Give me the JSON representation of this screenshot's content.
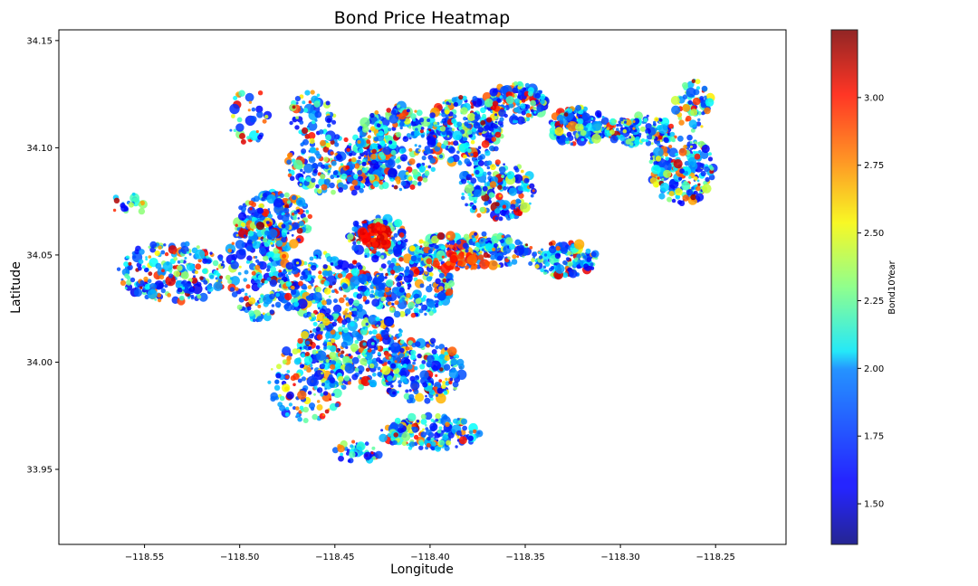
{
  "chart_data": {
    "type": "scatter",
    "title": "Bond Price Heatmap",
    "xlabel": "Longitude",
    "ylabel": "Latitude",
    "xlim": [
      -118.595,
      -118.213
    ],
    "ylim": [
      33.915,
      34.155
    ],
    "xticks": [
      -118.55,
      -118.5,
      -118.45,
      -118.4,
      -118.35,
      -118.3,
      -118.25
    ],
    "xtick_labels": [
      "−118.55",
      "−118.50",
      "−118.45",
      "−118.40",
      "−118.35",
      "−118.30",
      "−118.25"
    ],
    "yticks": [
      33.95,
      34.0,
      34.05,
      34.1,
      34.15
    ],
    "ytick_labels": [
      "33.95",
      "34.00",
      "34.05",
      "34.10",
      "34.15"
    ],
    "grid": false,
    "colormap": "jet",
    "colorbar": {
      "label": "Bond10Year",
      "min": 1.35,
      "max": 3.25,
      "ticks": [
        1.5,
        1.75,
        2.0,
        2.25,
        2.5,
        2.75,
        3.0
      ],
      "tick_labels": [
        "1.50",
        "1.75",
        "2.00",
        "2.25",
        "2.50",
        "2.75",
        "3.00"
      ]
    },
    "point_regions": [
      {
        "lon": -118.535,
        "lat": 34.042,
        "rlon": 0.03,
        "rlat": 0.014,
        "n": 240
      },
      {
        "lon": -118.49,
        "lat": 34.045,
        "rlon": 0.016,
        "rlat": 0.026,
        "n": 200
      },
      {
        "lon": -118.482,
        "lat": 34.066,
        "rlon": 0.02,
        "rlat": 0.013,
        "n": 200
      },
      {
        "lon": -118.558,
        "lat": 34.074,
        "rlon": 0.01,
        "rlat": 0.005,
        "n": 20
      },
      {
        "lon": -118.495,
        "lat": 34.115,
        "rlon": 0.012,
        "rlat": 0.014,
        "n": 35
      },
      {
        "lon": -118.462,
        "lat": 34.115,
        "rlon": 0.012,
        "rlat": 0.011,
        "n": 60
      },
      {
        "lon": -118.448,
        "lat": 34.092,
        "rlon": 0.028,
        "rlat": 0.014,
        "n": 260
      },
      {
        "lon": -118.417,
        "lat": 34.1,
        "rlon": 0.022,
        "rlat": 0.02,
        "n": 280
      },
      {
        "lon": -118.382,
        "lat": 34.108,
        "rlon": 0.02,
        "rlat": 0.016,
        "n": 240
      },
      {
        "lon": -118.355,
        "lat": 34.121,
        "rlon": 0.016,
        "rlat": 0.009,
        "n": 160
      },
      {
        "lon": -118.322,
        "lat": 34.11,
        "rlon": 0.015,
        "rlat": 0.009,
        "n": 150
      },
      {
        "lon": -118.29,
        "lat": 34.108,
        "rlon": 0.018,
        "rlat": 0.007,
        "n": 150
      },
      {
        "lon": -118.268,
        "lat": 34.09,
        "rlon": 0.017,
        "rlat": 0.016,
        "n": 200
      },
      {
        "lon": -118.262,
        "lat": 34.12,
        "rlon": 0.01,
        "rlat": 0.012,
        "n": 70
      },
      {
        "lon": -118.365,
        "lat": 34.08,
        "rlon": 0.02,
        "rlat": 0.014,
        "n": 200
      },
      {
        "lon": -118.428,
        "lat": 34.058,
        "rlon": 0.016,
        "rlat": 0.01,
        "n": 140
      },
      {
        "lon": -118.378,
        "lat": 34.052,
        "rlon": 0.032,
        "rlat": 0.008,
        "n": 260
      },
      {
        "lon": -118.33,
        "lat": 34.048,
        "rlon": 0.018,
        "rlat": 0.008,
        "n": 150
      },
      {
        "lon": -118.455,
        "lat": 34.035,
        "rlon": 0.025,
        "rlat": 0.016,
        "n": 260
      },
      {
        "lon": -118.41,
        "lat": 34.035,
        "rlon": 0.022,
        "rlat": 0.014,
        "n": 240
      },
      {
        "lon": -118.44,
        "lat": 34.005,
        "rlon": 0.03,
        "rlat": 0.018,
        "n": 320
      },
      {
        "lon": -118.465,
        "lat": 33.99,
        "rlon": 0.02,
        "rlat": 0.018,
        "n": 140
      },
      {
        "lon": -118.405,
        "lat": 33.996,
        "rlon": 0.022,
        "rlat": 0.015,
        "n": 200
      },
      {
        "lon": -118.4,
        "lat": 33.967,
        "rlon": 0.026,
        "rlat": 0.008,
        "n": 170
      },
      {
        "lon": -118.438,
        "lat": 33.958,
        "rlon": 0.012,
        "rlat": 0.005,
        "n": 40
      }
    ],
    "hotspots": [
      {
        "lon": -118.428,
        "lat": 34.059,
        "rlon": 0.008,
        "rlat": 0.006,
        "value": 3.0,
        "n": 70
      },
      {
        "lon": -118.385,
        "lat": 34.047,
        "rlon": 0.016,
        "rlat": 0.004,
        "value": 2.9,
        "n": 50
      }
    ]
  }
}
